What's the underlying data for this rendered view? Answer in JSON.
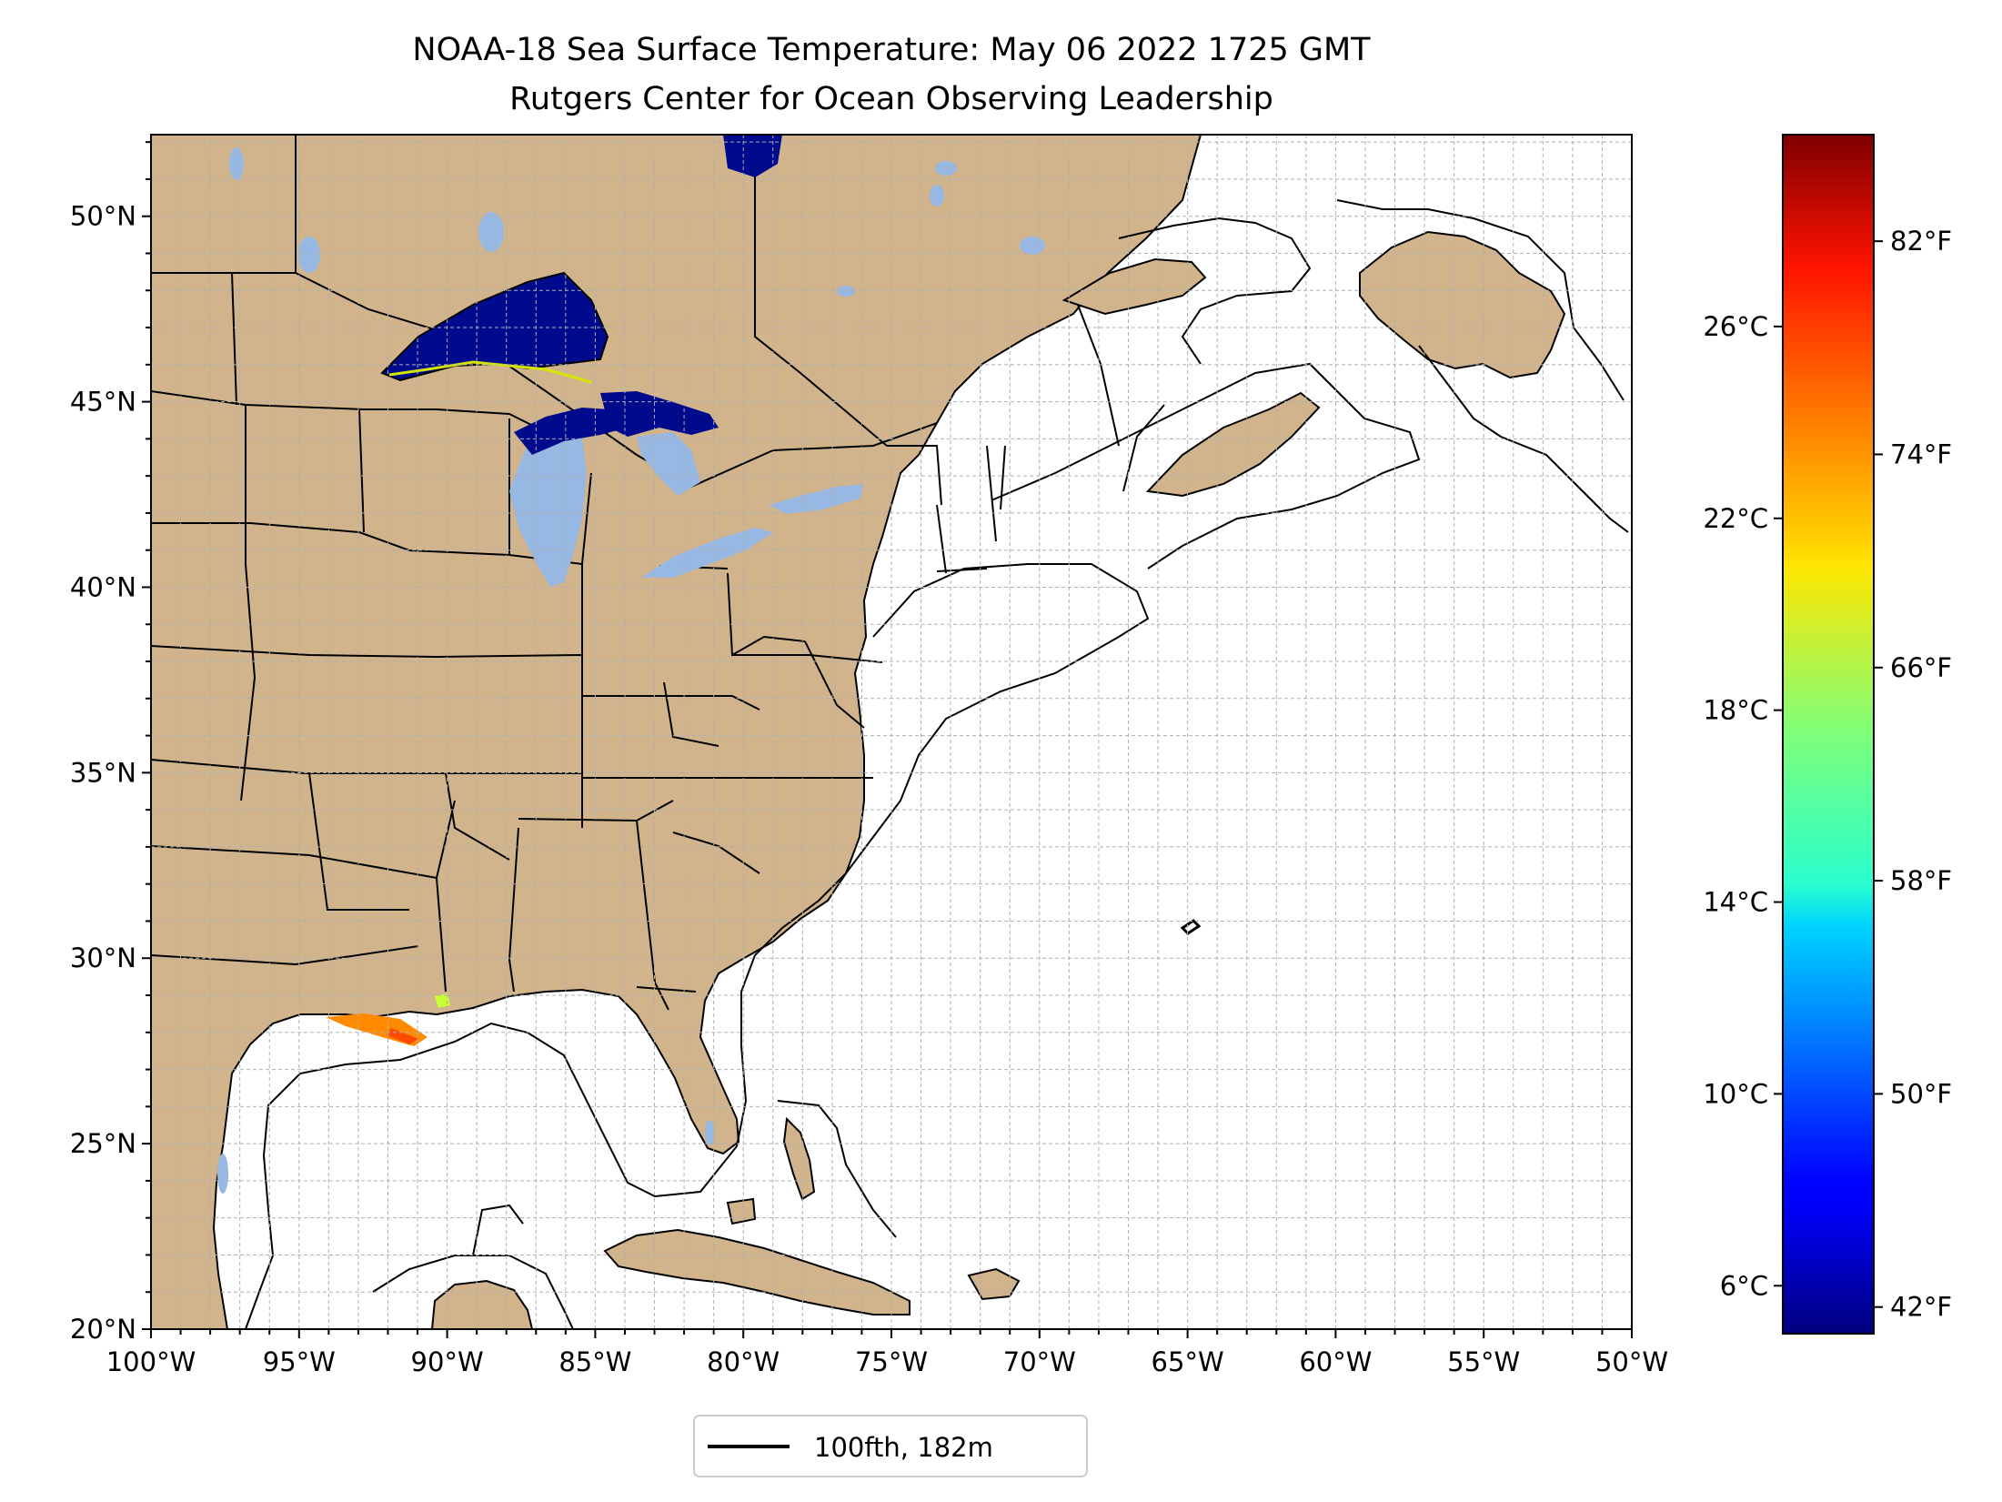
{
  "title": "NOAA-18 Sea Surface Temperature: May 06 2022 1725 GMT",
  "subtitle": "Rutgers Center for Ocean Observing Leadership",
  "map": {
    "lon_range": [
      -100,
      -50
    ],
    "lat_range": [
      20,
      52.2
    ],
    "gridlines": true,
    "x_ticks": [
      "100°W",
      "95°W",
      "90°W",
      "85°W",
      "80°W",
      "75°W",
      "70°W",
      "65°W",
      "60°W",
      "55°W",
      "50°W"
    ],
    "y_ticks": [
      "20°N",
      "25°N",
      "30°N",
      "35°N",
      "40°N",
      "45°N",
      "50°N"
    ],
    "colors": {
      "land": "#d2b48c",
      "inland_water": "#98b8e4",
      "ocean": "#ffffff",
      "grid": "#b0b0b0"
    }
  },
  "legend": {
    "label": "100fth, 182m",
    "placement": "bottom-center"
  },
  "colorbar": {
    "colormap": "jet",
    "range_c": [
      5,
      30
    ],
    "celsius_ticks": [
      "6°C",
      "10°C",
      "14°C",
      "18°C",
      "22°C",
      "26°C"
    ],
    "celsius_values": [
      6,
      10,
      14,
      18,
      22,
      26
    ],
    "fahrenheit_ticks": [
      "42°F",
      "50°F",
      "58°F",
      "66°F",
      "74°F",
      "82°F"
    ],
    "fahrenheit_values": [
      42,
      50,
      58,
      66,
      74,
      82
    ]
  }
}
